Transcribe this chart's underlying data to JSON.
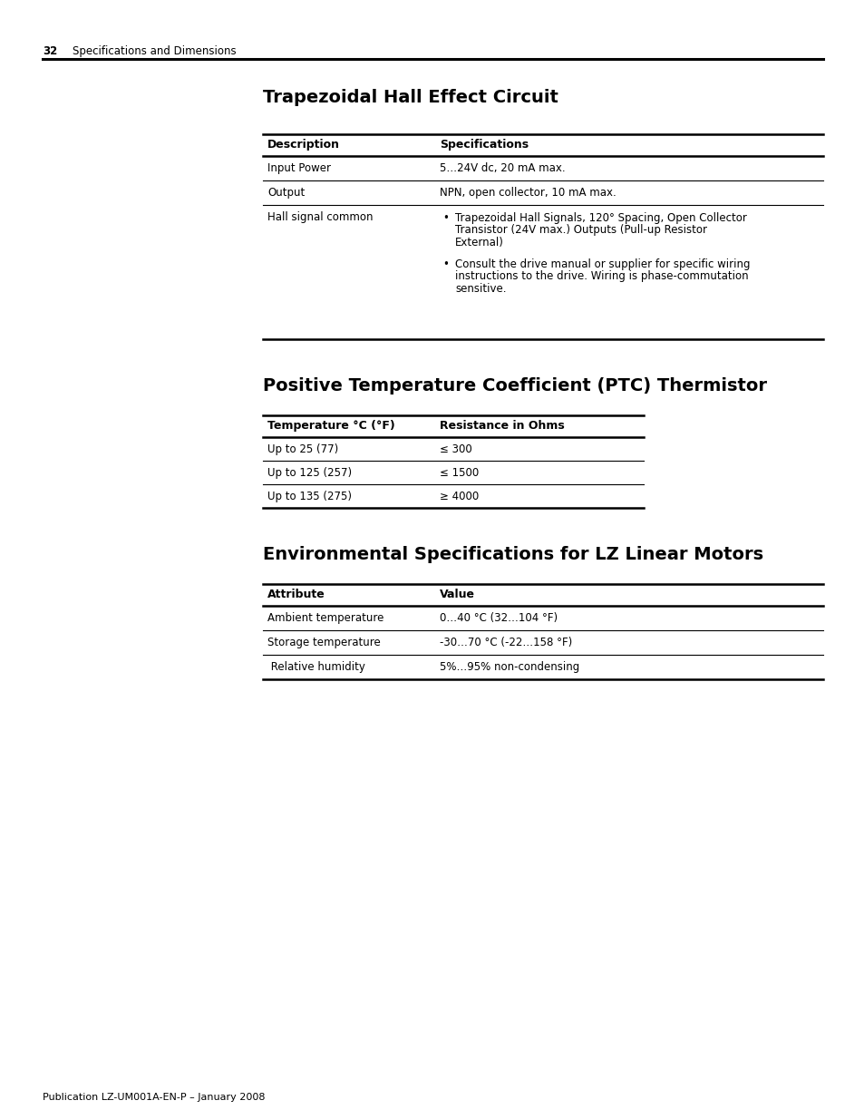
{
  "page_number": "32",
  "page_header": "Specifications and Dimensions",
  "footer": "Publication LZ-UM001A-EN-P – January 2008",
  "section1_title": "Trapezoidal Hall Effect Circuit",
  "table1_headers": [
    "Description",
    "Specifications"
  ],
  "table1_rows": [
    [
      "Input Power",
      "5…24V dc, 20 mA max."
    ],
    [
      "Output",
      "NPN, open collector, 10 mA max."
    ],
    [
      "Hall signal common",
      ""
    ]
  ],
  "bullet1_line1": "Trapezoidal Hall Signals, 120° Spacing, Open Collector",
  "bullet1_line2": "Transistor (24V max.) Outputs (Pull-up Resistor",
  "bullet1_line3": "External)",
  "bullet2_line1": "Consult the drive manual or supplier for specific wiring",
  "bullet2_line2": "instructions to the drive. Wiring is phase-commutation",
  "bullet2_line3": "sensitive.",
  "section2_title": "Positive Temperature Coefficient (PTC) Thermistor",
  "table2_headers": [
    "Temperature °C (°F)",
    "Resistance in Ohms"
  ],
  "table2_rows": [
    [
      "Up to 25 (77)",
      "≤ 300"
    ],
    [
      "Up to 125 (257)",
      "≤ 1500"
    ],
    [
      "Up to 135 (275)",
      "≥ 4000"
    ]
  ],
  "section3_title": "Environmental Specifications for LZ Linear Motors",
  "table3_headers": [
    "Attribute",
    "Value"
  ],
  "table3_rows": [
    [
      "Ambient temperature",
      "0…40 °C (32…104 °F)"
    ],
    [
      "Storage temperature",
      "-30…70 °C (-22…158 °F)"
    ],
    [
      " Relative humidity",
      "5%…95% non-condensing"
    ]
  ],
  "background": "#ffffff",
  "text_color": "#000000"
}
